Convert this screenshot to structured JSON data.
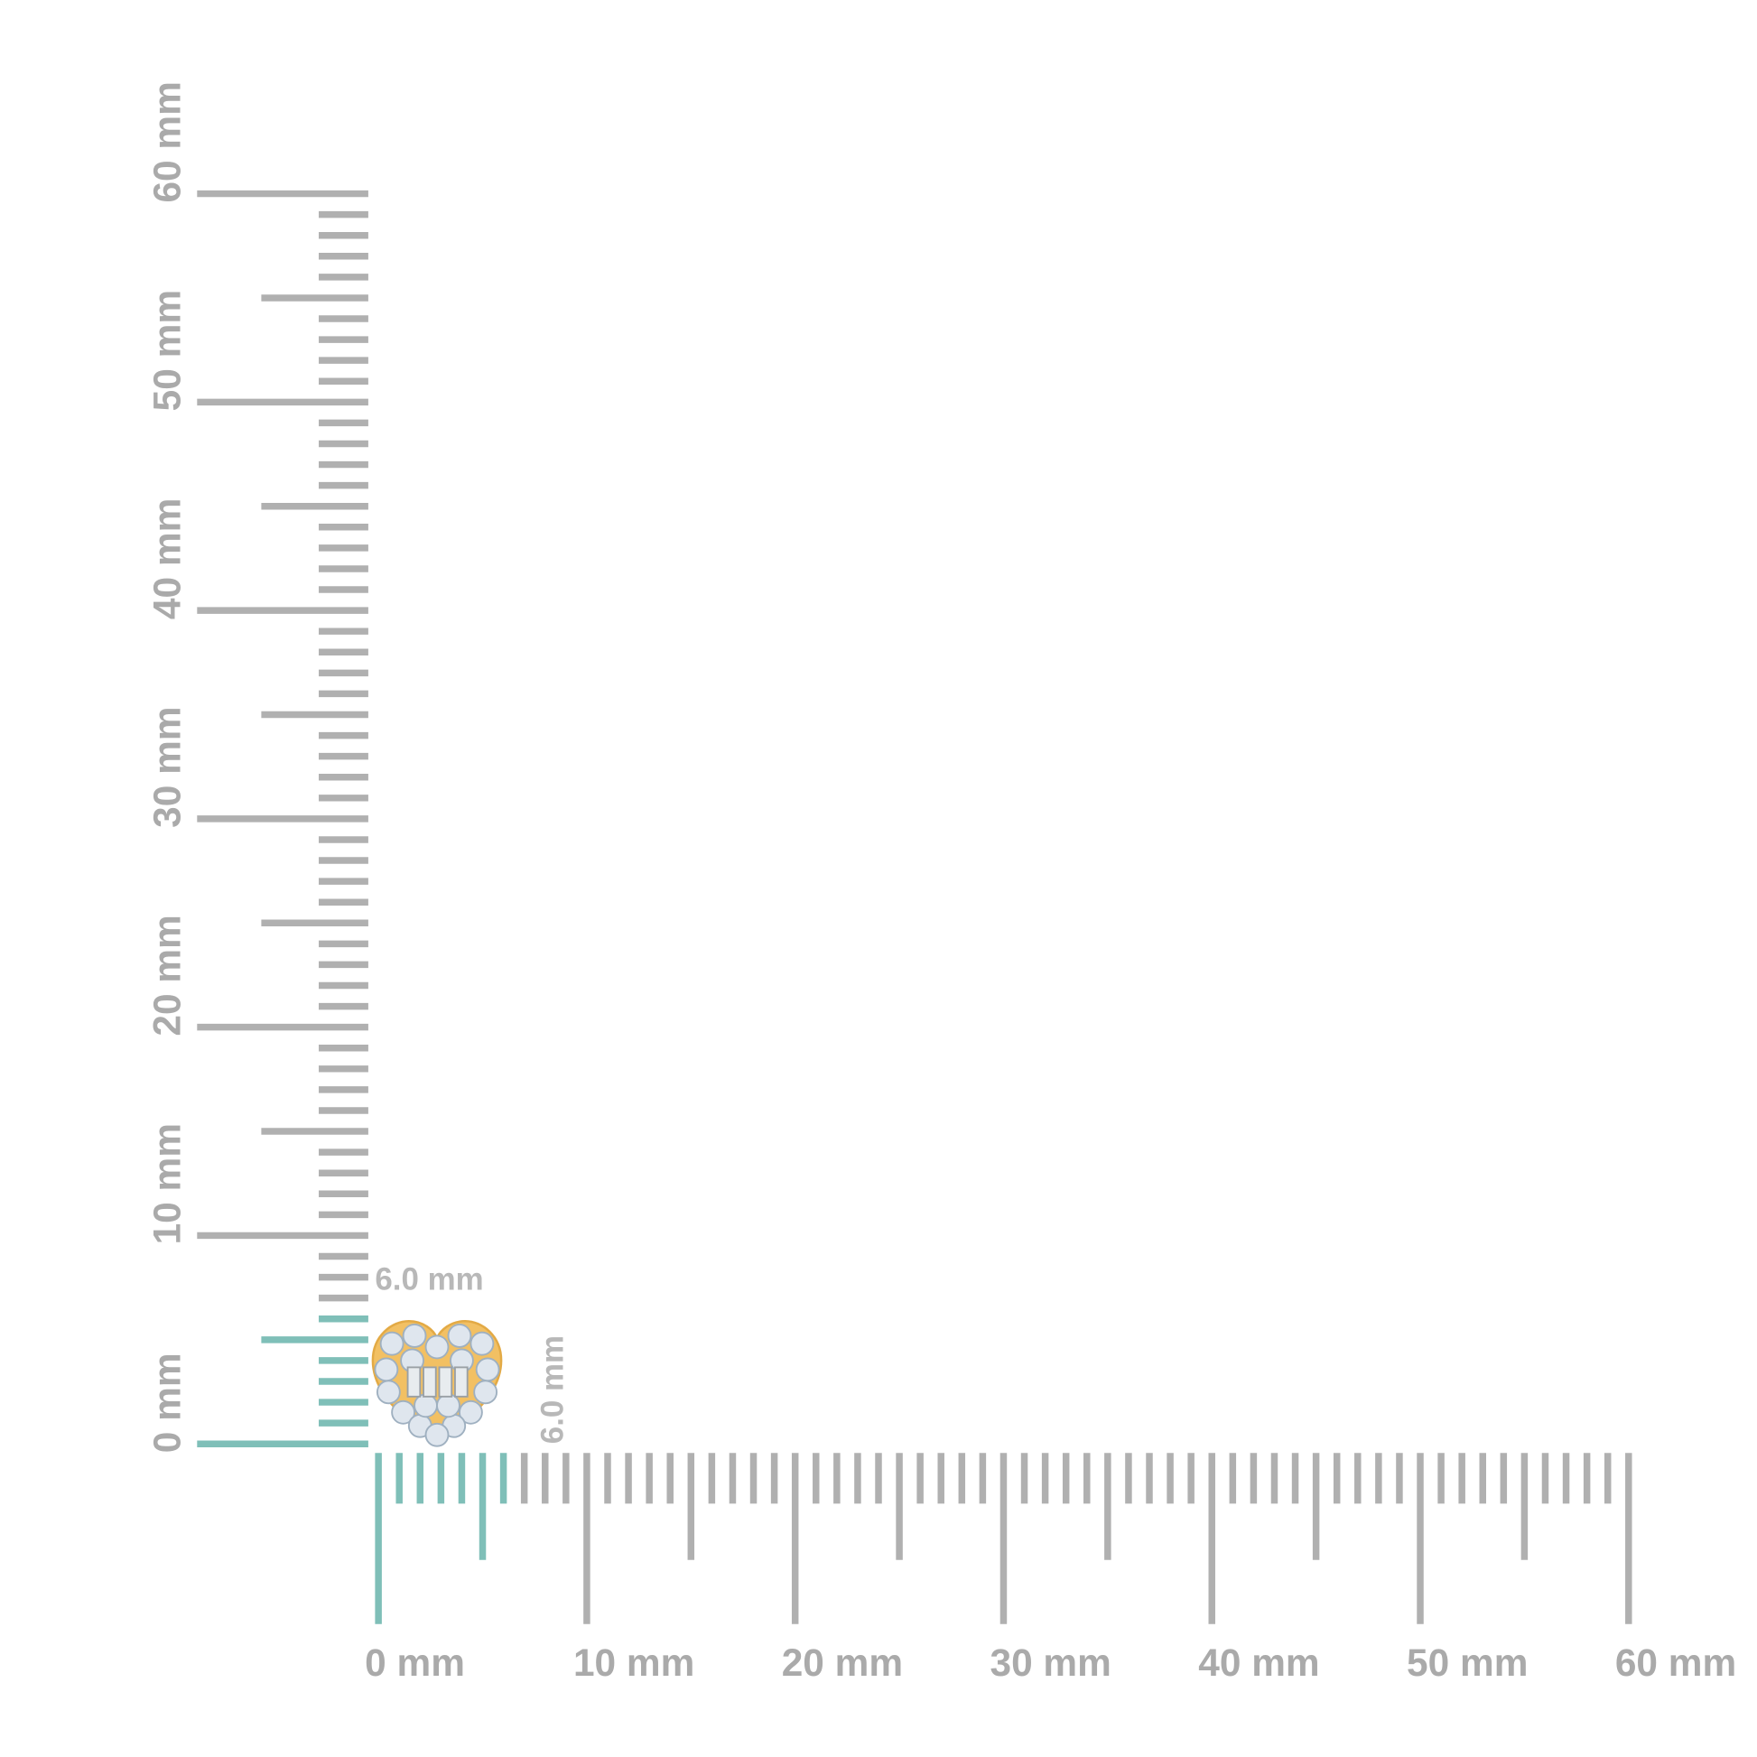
{
  "unit": "mm",
  "range_mm": [
    0,
    60
  ],
  "highlight_range_mm": [
    0,
    6
  ],
  "colors": {
    "ruler": "#b0b0b0",
    "highlight": "#7fbfb8",
    "text": "#aaaaaa",
    "gold": "#f2c063",
    "diamond": "#dfe6ee"
  },
  "vertical_ruler": {
    "labels": [
      "0 mm",
      "10 mm",
      "20 mm",
      "30 mm",
      "40 mm",
      "50 mm",
      "60 mm"
    ]
  },
  "horizontal_ruler": {
    "labels": [
      "0 mm",
      "10 mm",
      "20 mm",
      "30 mm",
      "40 mm",
      "50 mm",
      "60 mm"
    ]
  },
  "product": {
    "name_icon": "heart-earring",
    "width_label": "6.0 mm",
    "height_label": "6.0 mm",
    "width_mm": 6.0,
    "height_mm": 6.0
  }
}
